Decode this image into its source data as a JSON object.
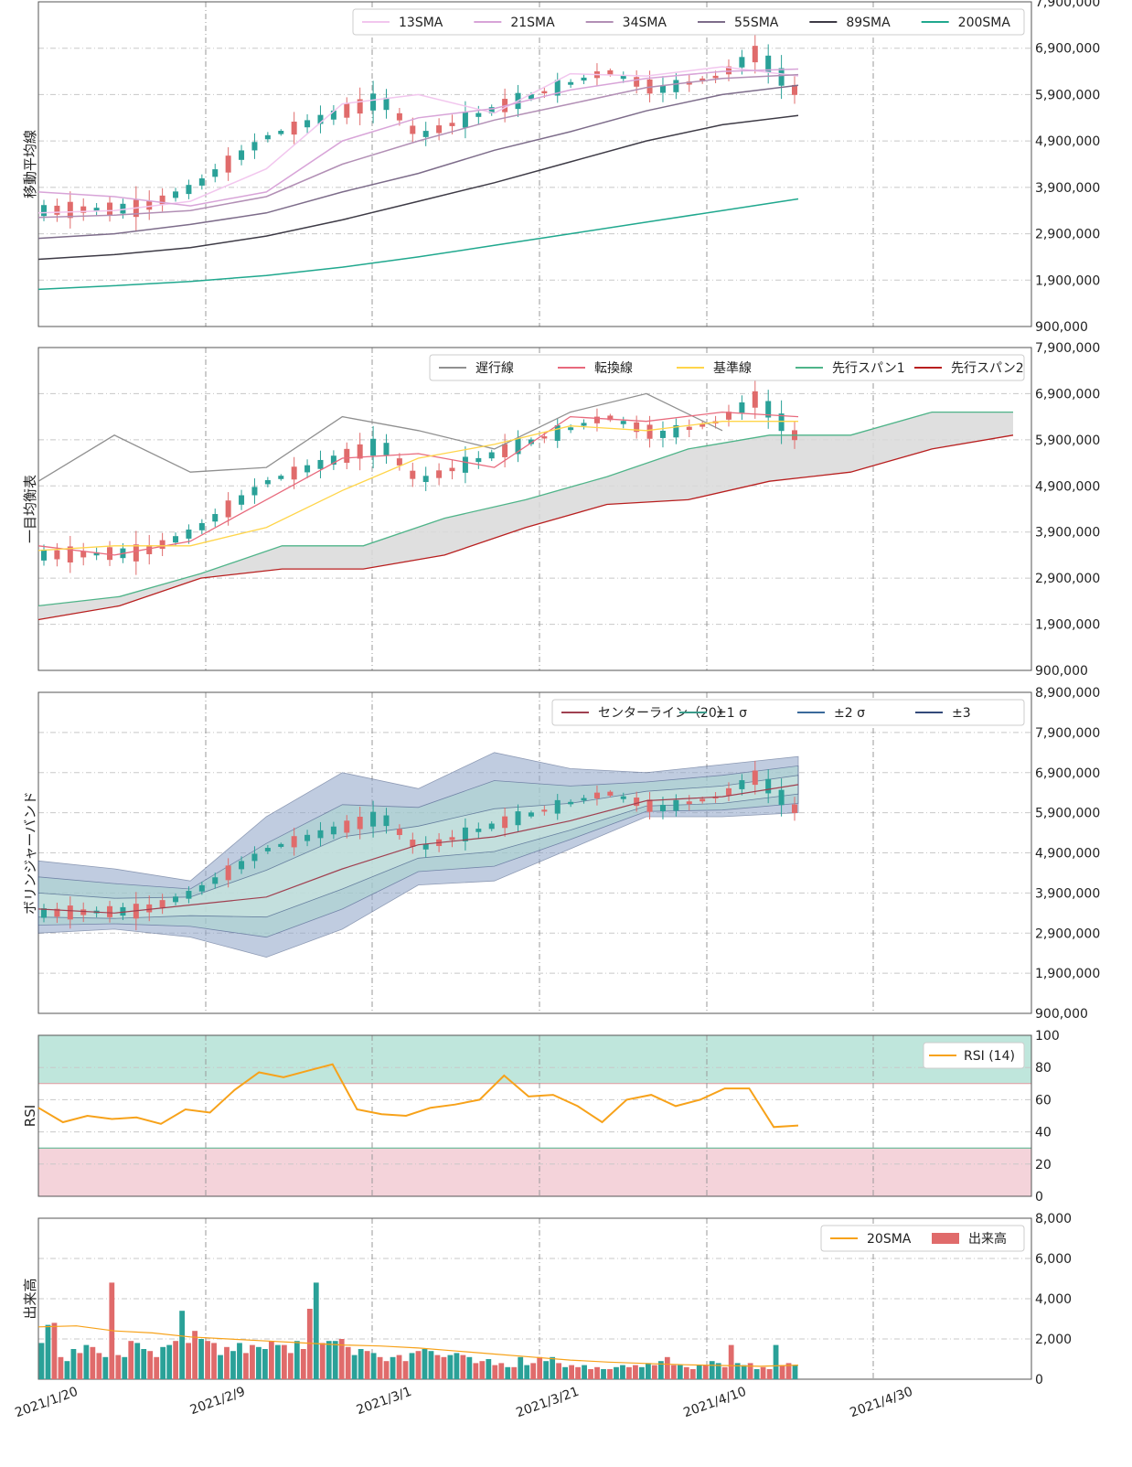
{
  "x_ticks": [
    "2021/1/20",
    "2021/2/9",
    "2021/3/1",
    "2021/3/21",
    "2021/4/10",
    "2021/4/30"
  ],
  "chart_data": [
    {
      "type": "line",
      "panel": "sma",
      "ylabel": "移動平均線",
      "ylim": [
        900000,
        7900000
      ],
      "y_ticks": [
        "900,000",
        "1,900,000",
        "2,900,000",
        "3,900,000",
        "4,900,000",
        "5,900,000",
        "6,900,000",
        "7,900,000"
      ],
      "y_tick_values": [
        900000,
        1900000,
        2900000,
        3900000,
        4900000,
        5900000,
        6900000,
        7900000
      ],
      "legend": [
        "13SMA",
        "21SMA",
        "34SMA",
        "55SMA",
        "89SMA",
        "200SMA"
      ],
      "colors": [
        "#f2c6ee",
        "#d8a4d8",
        "#b28fb5",
        "#7d6c8a",
        "#3d3a45",
        "#20a88e"
      ],
      "series": [
        {
          "name": "13SMA",
          "values": [
            3350000,
            3400000,
            3600000,
            4300000,
            5700000,
            5900000,
            5500000,
            6350000,
            6300000,
            6500000,
            6300000
          ]
        },
        {
          "name": "21SMA",
          "values": [
            3800000,
            3700000,
            3500000,
            3800000,
            4900000,
            5400000,
            5600000,
            6000000,
            6250000,
            6400000,
            6450000
          ]
        },
        {
          "name": "34SMA",
          "values": [
            3250000,
            3300000,
            3400000,
            3700000,
            4400000,
            4900000,
            5350000,
            5700000,
            6050000,
            6250000,
            6330000
          ]
        },
        {
          "name": "55SMA",
          "values": [
            2800000,
            2900000,
            3100000,
            3350000,
            3800000,
            4200000,
            4700000,
            5100000,
            5550000,
            5900000,
            6100000
          ]
        },
        {
          "name": "89SMA",
          "values": [
            2350000,
            2450000,
            2600000,
            2850000,
            3200000,
            3600000,
            4000000,
            4450000,
            4900000,
            5250000,
            5450000
          ]
        },
        {
          "name": "200SMA",
          "values": [
            1700000,
            1780000,
            1870000,
            2000000,
            2180000,
            2400000,
            2650000,
            2900000,
            3150000,
            3400000,
            3650000
          ]
        }
      ]
    },
    {
      "type": "line",
      "panel": "ichimoku",
      "ylabel": "一目均衡表",
      "ylim": [
        900000,
        7900000
      ],
      "y_ticks": [
        "900,000",
        "1,900,000",
        "2,900,000",
        "3,900,000",
        "4,900,000",
        "5,900,000",
        "6,900,000",
        "7,900,000"
      ],
      "y_tick_values": [
        900000,
        1900000,
        2900000,
        3900000,
        4900000,
        5900000,
        6900000,
        7900000
      ],
      "legend": [
        "遅行線",
        "転換線",
        "基準線",
        "先行スパン1",
        "先行スパン2"
      ],
      "colors": [
        "#909090",
        "#e86a7d",
        "#ffd54a",
        "#4fb489",
        "#b81f1f"
      ],
      "series": [
        {
          "name": "遅行線",
          "values": [
            5000000,
            6000000,
            5200000,
            5300000,
            6400000,
            6100000,
            5700000,
            6500000,
            6900000,
            6100000
          ]
        },
        {
          "name": "転換線",
          "values": [
            3600000,
            3400000,
            3700000,
            4600000,
            5500000,
            5600000,
            5300000,
            6400000,
            6300000,
            6500000,
            6400000
          ]
        },
        {
          "name": "基準線",
          "values": [
            3500000,
            3600000,
            3600000,
            4000000,
            4800000,
            5500000,
            5800000,
            6200000,
            6100000,
            6300000,
            6300000
          ]
        },
        {
          "name": "先行スパン1",
          "values": [
            2300000,
            2500000,
            3000000,
            3600000,
            3600000,
            4200000,
            4600000,
            5100000,
            5700000,
            6000000,
            6000000,
            6500000,
            6500000
          ]
        },
        {
          "name": "先行スパン2",
          "values": [
            2000000,
            2300000,
            2900000,
            3100000,
            3100000,
            3400000,
            4000000,
            4500000,
            4600000,
            5000000,
            5200000,
            5700000,
            6000000
          ]
        }
      ]
    },
    {
      "type": "area",
      "panel": "bollinger",
      "ylabel": "ボリンジャーバンド",
      "ylim": [
        900000,
        8900000
      ],
      "y_ticks": [
        "900,000",
        "1,900,000",
        "2,900,000",
        "3,900,000",
        "4,900,000",
        "5,900,000",
        "6,900,000",
        "7,900,000",
        "8,900,000"
      ],
      "y_tick_values": [
        900000,
        1900000,
        2900000,
        3900000,
        4900000,
        5900000,
        6900000,
        7900000,
        8900000
      ],
      "legend": [
        "センターライン（20）",
        "±1 σ",
        "±2 σ",
        "±3"
      ],
      "colors": [
        "#a04050",
        "#3a9a8a",
        "#3a6a9a",
        "#334a7a"
      ],
      "series": [
        {
          "name": "センターライン（20）",
          "values": [
            3500000,
            3400000,
            3600000,
            3800000,
            4500000,
            5100000,
            5300000,
            5700000,
            6200000,
            6300000,
            6600000
          ]
        },
        {
          "name": "+3σ",
          "values": [
            4700000,
            4500000,
            4200000,
            5800000,
            6900000,
            6500000,
            7400000,
            7000000,
            6900000,
            7100000,
            7300000
          ]
        },
        {
          "name": "-3σ",
          "values": [
            2900000,
            3000000,
            2800000,
            2300000,
            3000000,
            4100000,
            4200000,
            5000000,
            5800000,
            5800000,
            5900000
          ]
        }
      ]
    },
    {
      "type": "line",
      "panel": "rsi",
      "ylabel": "RSI",
      "ylim": [
        0,
        100
      ],
      "y_ticks": [
        "0",
        "20",
        "40",
        "60",
        "80",
        "100"
      ],
      "y_tick_values": [
        0,
        20,
        40,
        60,
        80,
        100
      ],
      "legend": [
        "RSI (14)"
      ],
      "colors": [
        "#f7a21a"
      ],
      "overbought": 70,
      "oversold": 30,
      "series": [
        {
          "name": "RSI (14)",
          "values": [
            55,
            46,
            50,
            48,
            49,
            45,
            54,
            52,
            66,
            77,
            74,
            78,
            82,
            54,
            51,
            50,
            55,
            57,
            60,
            75,
            62,
            63,
            56,
            46,
            60,
            63,
            56,
            60,
            67,
            67,
            43,
            44
          ]
        }
      ]
    },
    {
      "type": "bar",
      "panel": "volume",
      "ylabel": "出来高",
      "ylim": [
        0,
        8000
      ],
      "y_ticks": [
        "0",
        "2,000",
        "4,000",
        "6,000",
        "8,000"
      ],
      "y_tick_values": [
        0,
        2000,
        4000,
        6000,
        8000
      ],
      "legend": [
        "20SMA",
        "出来高"
      ],
      "colors": [
        "#f7a21a",
        "#e06b6b",
        "#2aa198"
      ],
      "series": [
        {
          "name": "出来高",
          "values": [
            1800,
            2700,
            2800,
            1100,
            900,
            1500,
            1300,
            1700,
            1600,
            1300,
            1100,
            4800,
            1200,
            1100,
            1900,
            1800,
            1500,
            1400,
            1100,
            1600,
            1700,
            1900,
            3400,
            1800,
            2400,
            2000,
            1900,
            1800,
            1200,
            1600,
            1400,
            1800,
            1300,
            1700,
            1600,
            1500,
            1900,
            1700,
            1700,
            1300,
            1900,
            1500,
            3500,
            4800,
            1800,
            1900,
            1900,
            2000,
            1600,
            1200,
            1500,
            1400,
            1300,
            1100,
            900,
            1100,
            1200,
            900,
            1300,
            1400,
            1500,
            1400,
            1200,
            1100,
            1200,
            1300,
            1200,
            1100,
            800,
            900,
            1000,
            700,
            800,
            600,
            600,
            1100,
            700,
            800,
            1100,
            900,
            1100,
            800,
            600,
            700,
            600,
            700,
            500,
            600,
            500,
            500,
            600,
            700,
            600,
            700,
            600,
            800,
            700,
            900,
            1100,
            700,
            700,
            600,
            500,
            700,
            700,
            900,
            800,
            600,
            1700,
            800,
            700,
            800,
            500,
            600,
            500,
            1700,
            700,
            800,
            700
          ]
        },
        {
          "name": "20SMA",
          "values": [
            2600,
            2650,
            2400,
            2300,
            2100,
            2000,
            1900,
            1800,
            1700,
            1650,
            1550,
            1400,
            1250,
            1100,
            950,
            850,
            780,
            720,
            680,
            640,
            700
          ]
        }
      ]
    }
  ]
}
